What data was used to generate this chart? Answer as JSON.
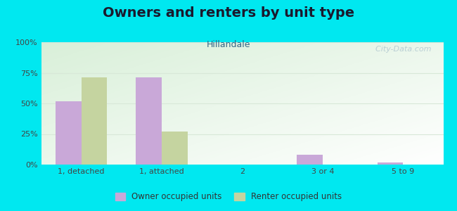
{
  "title": "Owners and renters by unit type",
  "subtitle": "Hillandale",
  "categories": [
    "1, detached",
    "1, attached",
    "2",
    "3 or 4",
    "5 to 9"
  ],
  "owner_values": [
    52,
    71,
    0,
    8,
    1.5
  ],
  "renter_values": [
    71,
    27,
    0,
    0,
    0
  ],
  "owner_color": "#c9a8d8",
  "renter_color": "#c5d4a0",
  "ylim": [
    0,
    100
  ],
  "yticks": [
    0,
    25,
    50,
    75,
    100
  ],
  "ytick_labels": [
    "0%",
    "25%",
    "50%",
    "75%",
    "100%"
  ],
  "background_outer": "#00e8f0",
  "background_plot_tl": "#d8f0d8",
  "background_plot_br": "#ffffff",
  "grid_color": "#d8e8d8",
  "title_fontsize": 14,
  "subtitle_fontsize": 9,
  "tick_fontsize": 8,
  "title_color": "#1a1a2e",
  "subtitle_color": "#336688",
  "tick_color": "#444444",
  "legend_label_owner": "Owner occupied units",
  "legend_label_renter": "Renter occupied units",
  "watermark_text": "  City-Data.com"
}
